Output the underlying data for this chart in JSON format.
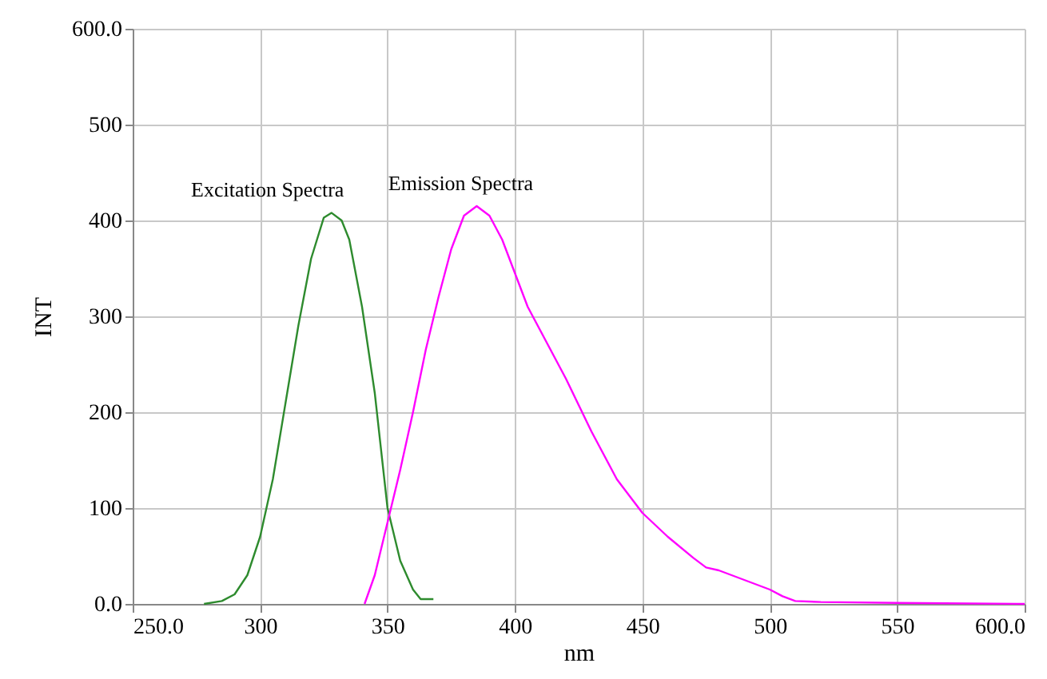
{
  "chart_data": {
    "type": "line",
    "xlabel": "nm",
    "ylabel": "INT",
    "xlim": [
      250,
      600
    ],
    "xticks": [
      {
        "value": 250,
        "label": "250.0"
      },
      300,
      350,
      400,
      450,
      500,
      550,
      {
        "value": 600,
        "label": "600.0"
      }
    ],
    "ylim": [
      0,
      600
    ],
    "yticks": [
      {
        "value": 0,
        "label": "0.0"
      },
      100,
      200,
      300,
      400,
      500,
      {
        "value": 600,
        "label": "600.0"
      }
    ],
    "grid": true,
    "marker": "none",
    "line_style": "solid",
    "series": [
      {
        "name": "Excitation Spectra",
        "color": "#2e8b2e",
        "x": [
          278,
          285,
          290,
          295,
          300,
          305,
          310,
          315,
          320,
          325,
          328,
          332,
          335,
          340,
          345,
          350,
          355,
          360,
          363,
          368
        ],
        "values": [
          0,
          3,
          10,
          30,
          70,
          130,
          210,
          290,
          360,
          403,
          408,
          400,
          380,
          310,
          220,
          100,
          45,
          15,
          5,
          5
        ]
      },
      {
        "name": "Emission Spectra",
        "color": "#ff00ff",
        "x": [
          341,
          345,
          350,
          355,
          360,
          365,
          370,
          375,
          380,
          385,
          390,
          395,
          400,
          405,
          410,
          420,
          430,
          440,
          450,
          460,
          470,
          475,
          480,
          490,
          500,
          505,
          510,
          520,
          550,
          600
        ],
        "values": [
          0,
          30,
          85,
          140,
          200,
          265,
          320,
          370,
          405,
          415,
          405,
          380,
          345,
          310,
          285,
          235,
          180,
          130,
          95,
          70,
          48,
          38,
          35,
          25,
          15,
          8,
          3,
          2,
          1,
          0
        ]
      }
    ]
  }
}
